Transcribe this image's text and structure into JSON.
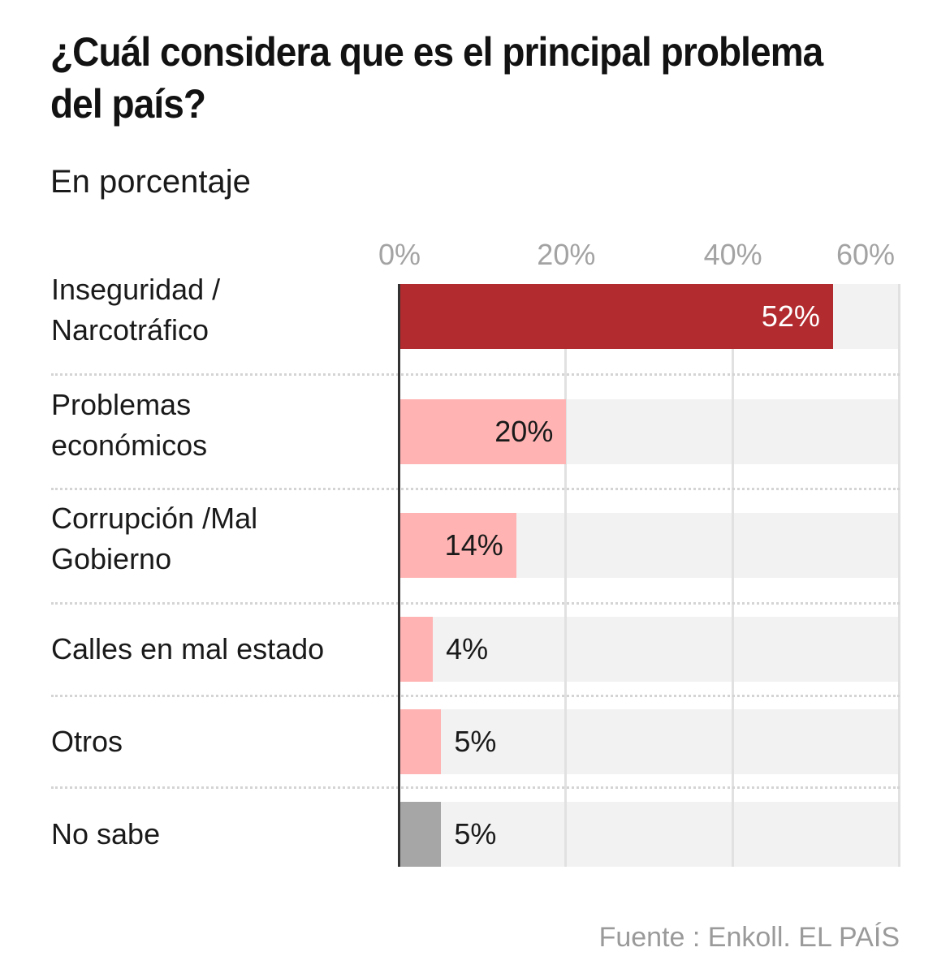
{
  "chart_data": {
    "type": "bar",
    "orientation": "horizontal",
    "title": "¿Cuál considera que es el principal problema del país?",
    "subtitle": "En porcentaje",
    "xlabel": "",
    "ylabel": "",
    "xlim": [
      0,
      60
    ],
    "x_ticks": [
      0,
      20,
      40,
      60
    ],
    "x_tick_labels": [
      "0%",
      "20%",
      "40%",
      "60%"
    ],
    "grid": true,
    "categories": [
      "Inseguridad / Narcotráfico",
      "Problemas económicos",
      "Corrupción /Mal Gobierno",
      "Calles en mal estado",
      "Otros",
      "No sabe"
    ],
    "category_lines": [
      [
        "Inseguridad /",
        "Narcotráfico"
      ],
      [
        "Problemas",
        "económicos"
      ],
      [
        "Corrupción /Mal",
        "Gobierno"
      ],
      [
        "Calles en mal estado"
      ],
      [
        "Otros"
      ],
      [
        "No sabe"
      ]
    ],
    "values": [
      52,
      20,
      14,
      4,
      5,
      5
    ],
    "value_labels": [
      "52%",
      "20%",
      "14%",
      "4%",
      "5%",
      "5%"
    ],
    "colors": [
      "#b22b2f",
      "#ffb3b3",
      "#ffb3b3",
      "#ffb3b3",
      "#ffb3b3",
      "#a6a6a6"
    ],
    "background_track_color": "#f2f2f2",
    "source": "Fuente : Enkoll. EL PAÍS"
  }
}
